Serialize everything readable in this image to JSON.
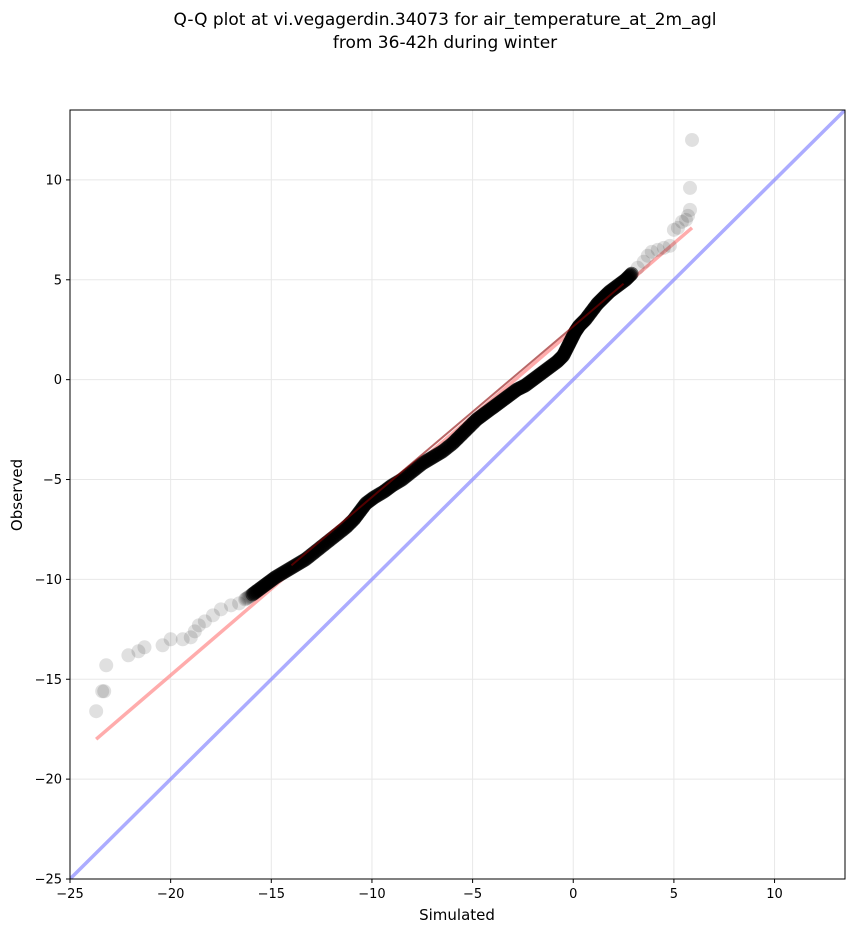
{
  "chart_data": {
    "type": "scatter",
    "title": "Q-Q plot at vi.vegagerdin.34073 for air_temperature_at_2m_agl",
    "subtitle": "from 36-42h during winter",
    "xlabel": "Simulated",
    "ylabel": "Observed",
    "xlim": [
      -25,
      13.5
    ],
    "ylim": [
      -25,
      13.5
    ],
    "xticks": [
      "−25",
      "−20",
      "−15",
      "−10",
      "−5",
      "0",
      "5",
      "10"
    ],
    "yticks": [
      "−25",
      "−20",
      "−15",
      "−10",
      "−5",
      "0",
      "5",
      "10"
    ],
    "xtick_values": [
      -25,
      -20,
      -15,
      -10,
      -5,
      0,
      5,
      10
    ],
    "ytick_values": [
      -25,
      -20,
      -15,
      -10,
      -5,
      0,
      5,
      10
    ],
    "grid": true,
    "colors": {
      "points": "#000000",
      "fit_line": "#ff7f7f",
      "identity_line": "#7f7fff",
      "grid": "#e8e8e8"
    },
    "series": [
      {
        "type": "scatter",
        "points": [
          [
            -23.7,
            -16.6
          ],
          [
            -23.4,
            -15.6
          ],
          [
            -23.3,
            -15.6
          ],
          [
            -23.2,
            -14.3
          ],
          [
            -22.1,
            -13.8
          ],
          [
            -21.6,
            -13.6
          ],
          [
            -21.3,
            -13.4
          ],
          [
            -20.4,
            -13.3
          ],
          [
            -20.0,
            -13.0
          ],
          [
            -19.4,
            -13.0
          ],
          [
            -19.0,
            -12.9
          ],
          [
            -18.8,
            -12.6
          ],
          [
            -18.6,
            -12.3
          ],
          [
            -18.3,
            -12.1
          ],
          [
            -17.9,
            -11.8
          ],
          [
            -17.5,
            -11.5
          ],
          [
            -17.0,
            -11.3
          ],
          [
            -16.6,
            -11.2
          ],
          [
            -16.3,
            -11.0
          ],
          [
            -16.0,
            -10.8
          ],
          [
            -15.6,
            -10.5
          ],
          [
            -15.2,
            -10.2
          ],
          [
            -14.8,
            -9.9
          ],
          [
            -14.3,
            -9.6
          ],
          [
            -13.8,
            -9.3
          ],
          [
            -13.3,
            -9.0
          ],
          [
            -12.8,
            -8.6
          ],
          [
            -12.3,
            -8.2
          ],
          [
            -11.8,
            -7.8
          ],
          [
            -11.3,
            -7.4
          ],
          [
            -10.9,
            -7.0
          ],
          [
            -10.6,
            -6.6
          ],
          [
            -10.3,
            -6.2
          ],
          [
            -9.9,
            -5.9
          ],
          [
            -9.4,
            -5.6
          ],
          [
            -9.0,
            -5.3
          ],
          [
            -8.5,
            -5.0
          ],
          [
            -8.0,
            -4.6
          ],
          [
            -7.5,
            -4.2
          ],
          [
            -7.0,
            -3.9
          ],
          [
            -6.5,
            -3.6
          ],
          [
            -6.0,
            -3.2
          ],
          [
            -5.6,
            -2.8
          ],
          [
            -5.2,
            -2.4
          ],
          [
            -4.8,
            -2.0
          ],
          [
            -4.4,
            -1.7
          ],
          [
            -4.0,
            -1.4
          ],
          [
            -3.6,
            -1.1
          ],
          [
            -3.2,
            -0.8
          ],
          [
            -2.8,
            -0.5
          ],
          [
            -2.4,
            -0.3
          ],
          [
            -2.0,
            0.0
          ],
          [
            -1.6,
            0.3
          ],
          [
            -1.2,
            0.6
          ],
          [
            -0.8,
            0.9
          ],
          [
            -0.5,
            1.2
          ],
          [
            -0.3,
            1.6
          ],
          [
            -0.1,
            2.0
          ],
          [
            0.1,
            2.4
          ],
          [
            0.3,
            2.7
          ],
          [
            0.6,
            3.0
          ],
          [
            0.9,
            3.4
          ],
          [
            1.2,
            3.8
          ],
          [
            1.5,
            4.1
          ],
          [
            1.8,
            4.4
          ],
          [
            2.2,
            4.7
          ],
          [
            2.6,
            5.0
          ],
          [
            2.9,
            5.3
          ],
          [
            3.2,
            5.6
          ],
          [
            3.5,
            5.9
          ],
          [
            3.7,
            6.2
          ],
          [
            3.9,
            6.4
          ],
          [
            4.2,
            6.5
          ],
          [
            4.5,
            6.6
          ],
          [
            4.8,
            6.7
          ],
          [
            5.0,
            7.5
          ],
          [
            5.2,
            7.6
          ],
          [
            5.4,
            7.9
          ],
          [
            5.6,
            8.0
          ],
          [
            5.7,
            8.2
          ],
          [
            5.8,
            8.5
          ],
          [
            5.8,
            9.6
          ],
          [
            5.9,
            12.0
          ]
        ]
      },
      {
        "type": "line",
        "name": "fit",
        "points": [
          [
            -23.7,
            -18.0
          ],
          [
            5.9,
            7.6
          ]
        ]
      },
      {
        "type": "line",
        "name": "identity",
        "points": [
          [
            -25,
            -25
          ],
          [
            13.5,
            13.5
          ]
        ]
      }
    ]
  }
}
